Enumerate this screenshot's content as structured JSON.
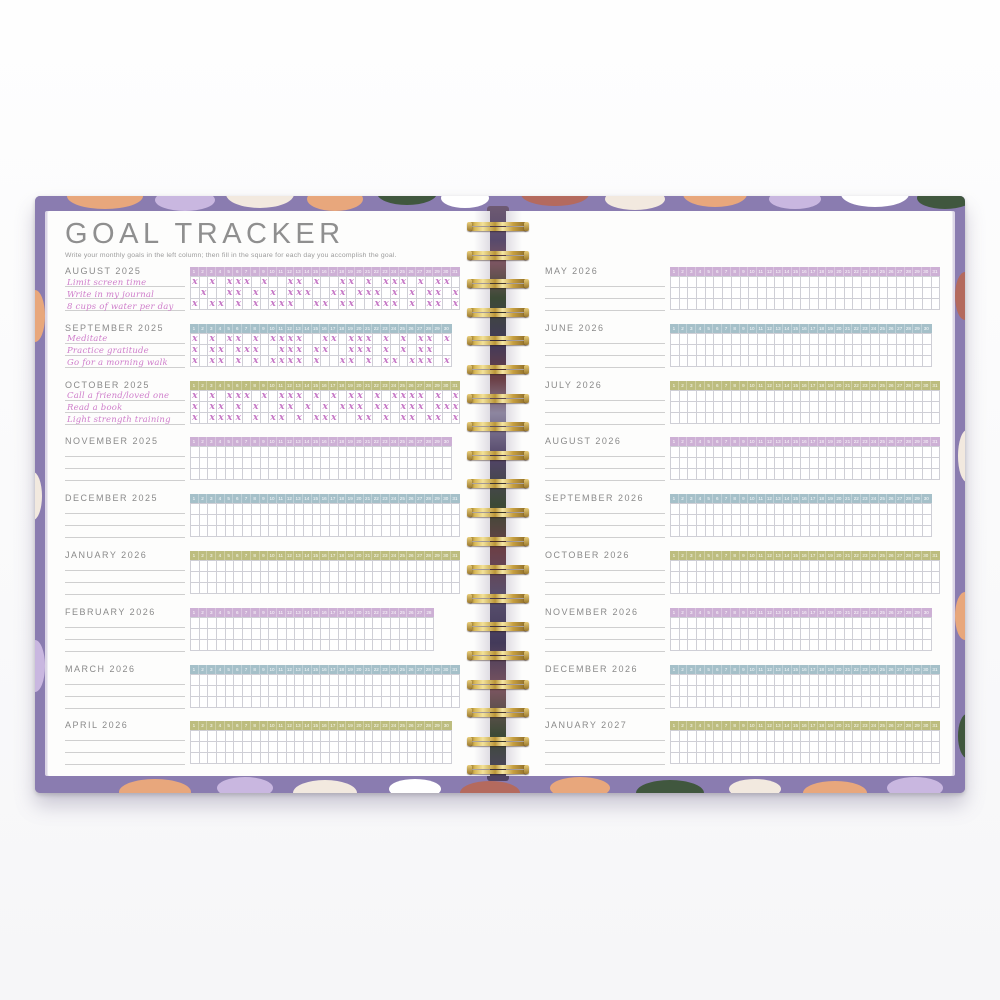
{
  "page": {
    "title": "GOAL TRACKER",
    "subtitle": "Write your monthly goals in the left column; then fill in the square for each day you accomplish the goal."
  },
  "palette": {
    "header_purple": "#cdb0d5",
    "header_blue": "#a5c0c9",
    "header_olive": "#bdbd7f",
    "label_gray": "#8a8a8a",
    "handwriting_pink": "#cf7ecb",
    "mark_pink": "#c678c6",
    "cover_purple": "#8a7cb0",
    "wire_gold": "#d9b857",
    "cover_accents": [
      "#e8a77c",
      "#f2e9df",
      "#ffffff",
      "#40573e",
      "#b46a5e",
      "#c9b7e0"
    ]
  },
  "left_page": {
    "months": [
      {
        "label": "AUGUST 2025",
        "days": 31,
        "header": "purple",
        "goals": [
          "Limit screen time",
          "Write in my journal",
          "8 cups of water per day"
        ],
        "marks": [
          "X.X.XXX.X..XX.X..XX.X.XXX.X.XX.",
          ".X..XX.X.X.XXX..XX.XXX.X.X.XX.X",
          "X.XX.X.X.XXX..XX.XX..XXX.X.XX.X"
        ]
      },
      {
        "label": "SEPTEMBER 2025",
        "days": 30,
        "header": "blue",
        "goals": [
          "Meditate",
          "Practice gratitude",
          "Go for a morning walk"
        ],
        "marks": [
          "X.X.XX.X.XXXX..XX.XXX.X.X.XX.X",
          "X.XX.XXX..XXX.XX..XXX.X.X.XX..",
          "X.XX.X.X.XXXX.X..XX.X.XX.XXX.X"
        ]
      },
      {
        "label": "OCTOBER 2025",
        "days": 31,
        "header": "olive",
        "goals": [
          "Call a friend/loved one",
          "Read a book",
          "Light strength training"
        ],
        "marks": [
          "X.X.XXX.X.XXX.X.X.XX.X.XXXX.X.X",
          "X.XX.X.X..XX.X.X.XXX.XX.XXX.XXX",
          "X.XXXX.X.XX.X.XXX..XX.X.XX.XX.X"
        ]
      },
      {
        "label": "NOVEMBER 2025",
        "days": 30,
        "header": "purple",
        "goals": [
          "",
          "",
          ""
        ],
        "marks": []
      },
      {
        "label": "DECEMBER 2025",
        "days": 31,
        "header": "blue",
        "goals": [
          "",
          "",
          ""
        ],
        "marks": []
      },
      {
        "label": "JANUARY 2026",
        "days": 31,
        "header": "olive",
        "goals": [
          "",
          "",
          ""
        ],
        "marks": []
      },
      {
        "label": "FEBRUARY 2026",
        "days": 28,
        "header": "purple",
        "goals": [
          "",
          "",
          ""
        ],
        "marks": []
      },
      {
        "label": "MARCH 2026",
        "days": 31,
        "header": "blue",
        "goals": [
          "",
          "",
          ""
        ],
        "marks": []
      },
      {
        "label": "APRIL 2026",
        "days": 30,
        "header": "olive",
        "goals": [
          "",
          "",
          ""
        ],
        "marks": []
      }
    ]
  },
  "right_page": {
    "months": [
      {
        "label": "MAY 2026",
        "days": 31,
        "header": "purple",
        "goals": [
          "",
          "",
          ""
        ],
        "marks": []
      },
      {
        "label": "JUNE 2026",
        "days": 30,
        "header": "blue",
        "goals": [
          "",
          "",
          ""
        ],
        "marks": []
      },
      {
        "label": "JULY 2026",
        "days": 31,
        "header": "olive",
        "goals": [
          "",
          "",
          ""
        ],
        "marks": []
      },
      {
        "label": "AUGUST 2026",
        "days": 31,
        "header": "purple",
        "goals": [
          "",
          "",
          ""
        ],
        "marks": []
      },
      {
        "label": "SEPTEMBER 2026",
        "days": 30,
        "header": "blue",
        "goals": [
          "",
          "",
          ""
        ],
        "marks": []
      },
      {
        "label": "OCTOBER 2026",
        "days": 31,
        "header": "olive",
        "goals": [
          "",
          "",
          ""
        ],
        "marks": []
      },
      {
        "label": "NOVEMBER 2026",
        "days": 30,
        "header": "purple",
        "goals": [
          "",
          "",
          ""
        ],
        "marks": []
      },
      {
        "label": "DECEMBER 2026",
        "days": 31,
        "header": "blue",
        "goals": [
          "",
          "",
          ""
        ],
        "marks": []
      },
      {
        "label": "JANUARY 2027",
        "days": 31,
        "header": "olive",
        "goals": [
          "",
          "",
          ""
        ],
        "marks": []
      }
    ]
  }
}
